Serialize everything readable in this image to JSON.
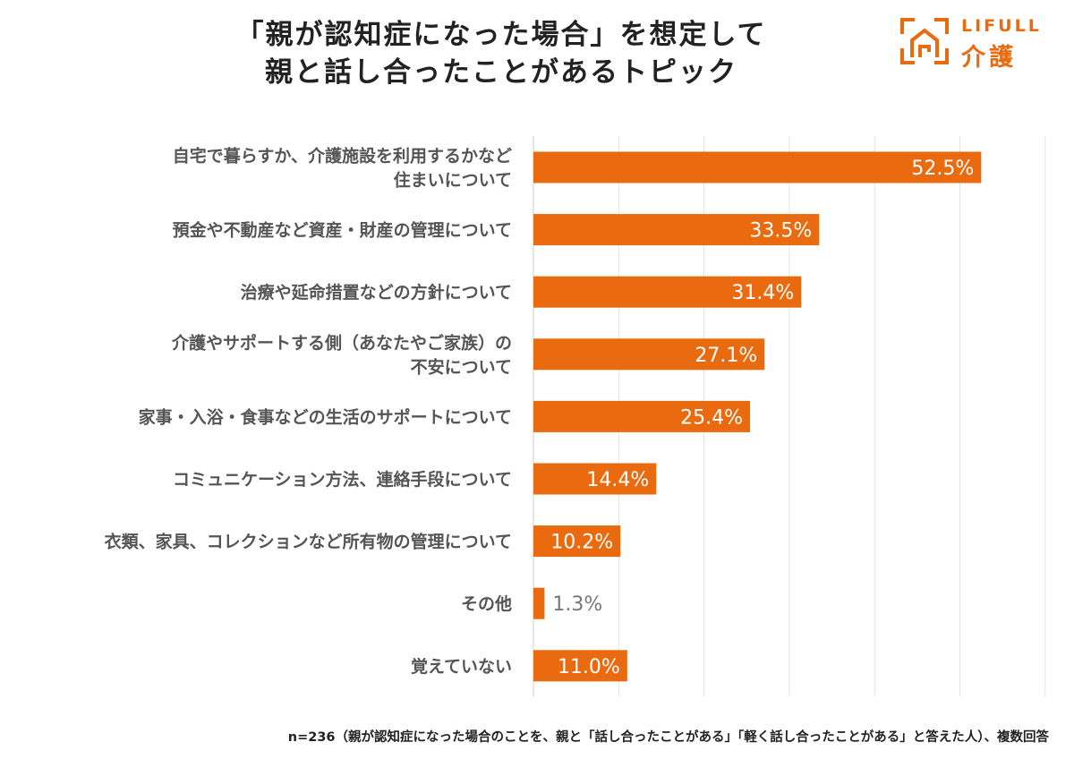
{
  "title": {
    "line1": "「親が認知症になった場合」を想定して",
    "line2": "親と話し合ったことがあるトピック"
  },
  "logo": {
    "text_en": "LIFULL",
    "text_jp": "介護",
    "icon": "house-bracket-icon",
    "color": "#ea6a0f"
  },
  "chart_data": {
    "type": "bar",
    "orientation": "horizontal",
    "title": "「親が認知症になった場合」を想定して親と話し合ったことがあるトピック",
    "xlabel": "",
    "ylabel": "",
    "xlim": [
      0,
      60
    ],
    "grid": true,
    "bar_color": "#ea6a0f",
    "categories": [
      [
        "自宅で暮らすか、介護施設を利用するかなど",
        "住まいについて"
      ],
      [
        "預金や不動産など資産・財産の管理について"
      ],
      [
        "治療や延命措置などの方針について"
      ],
      [
        "介護やサポートする側（あなたやご家族）の",
        "不安について"
      ],
      [
        "家事・入浴・食事などの生活のサポートについて"
      ],
      [
        "コミュニケーション方法、連絡手段について"
      ],
      [
        "衣類、家具、コレクションなど所有物の管理について"
      ],
      [
        "その他"
      ],
      [
        "覚えていない"
      ]
    ],
    "values": [
      52.5,
      33.5,
      31.4,
      27.1,
      25.4,
      14.4,
      10.2,
      1.3,
      11.0
    ],
    "labels": [
      "52.5%",
      "33.5%",
      "31.4%",
      "27.1%",
      "25.4%",
      "14.4%",
      "10.2%",
      "1.3%",
      "11.0%"
    ]
  },
  "footnote": "n=236（親が認知症になった場合のことを、親と「話し合ったことがある」「軽く話し合ったことがある」と答えた人）、複数回答"
}
